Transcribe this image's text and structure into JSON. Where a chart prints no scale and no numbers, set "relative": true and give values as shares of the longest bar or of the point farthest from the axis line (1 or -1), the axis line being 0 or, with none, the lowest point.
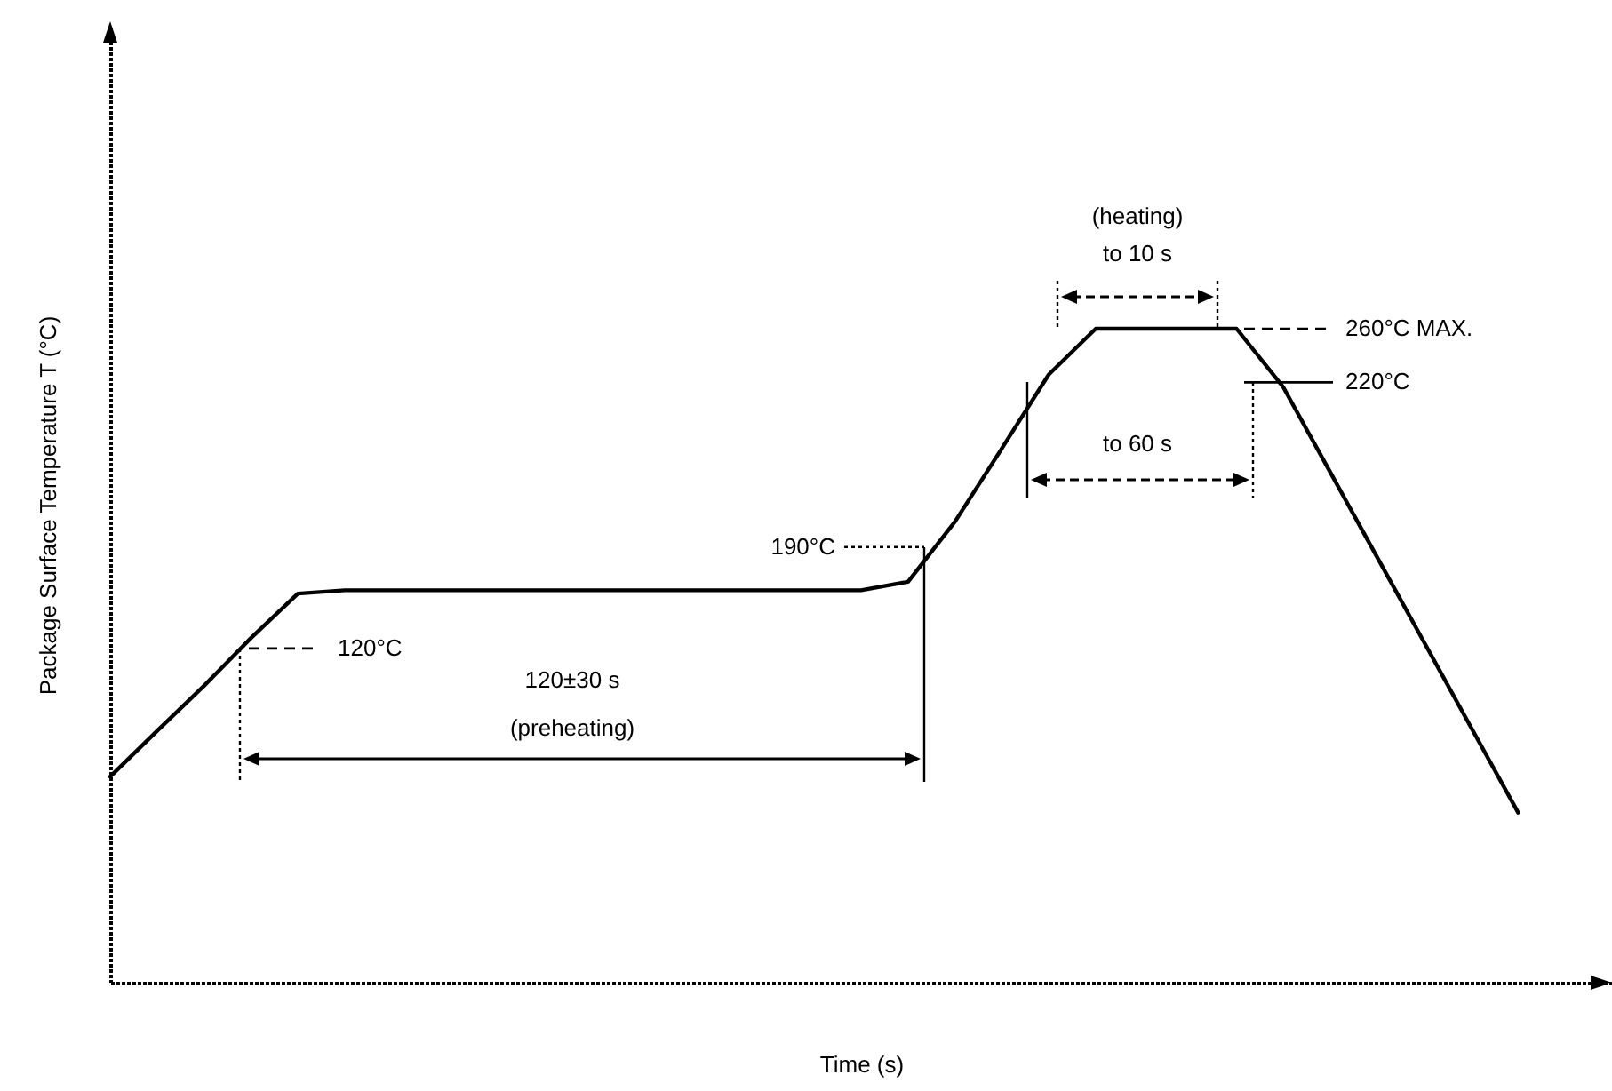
{
  "chart_data": {
    "type": "line",
    "relative": true,
    "xlabel": "Time (s)",
    "ylabel": "Package Surface Temperature  T (°C)",
    "tick_labels": false,
    "grid": false,
    "marker": "none",
    "line_style": "solid",
    "categories": [
      null,
      null,
      null,
      null,
      null,
      null,
      null,
      null,
      null,
      null,
      null,
      null,
      null,
      null,
      null,
      null,
      null,
      null,
      null,
      null,
      null,
      null,
      null,
      null,
      null,
      null,
      null,
      null,
      null,
      null,
      null
    ],
    "series": [
      {
        "color": "#000000",
        "values": [
          0.315,
          0.385,
          0.454,
          0.527,
          0.595,
          0.6,
          0.6,
          0.6,
          0.6,
          0.6,
          0.6,
          0.6,
          0.6,
          0.6,
          0.6,
          0.6,
          0.6,
          0.613,
          0.705,
          0.817,
          0.93,
          1,
          1,
          1,
          1,
          0.91,
          0.78,
          0.65,
          0.52,
          0.39,
          0.26
        ]
      }
    ],
    "ref_lines": [
      {
        "axis": "y",
        "value": 0.511,
        "label": "120°C",
        "line_style": "dashed"
      },
      {
        "axis": "y",
        "value": 0.666,
        "label": "190°C",
        "line_style": "dotted"
      },
      {
        "axis": "y",
        "value": 0.918,
        "label": "220°C",
        "line_style": "solid"
      },
      {
        "axis": "y",
        "value": 1,
        "label": "260°C MAX.",
        "line_style": "dashed"
      }
    ],
    "annotations": [
      "120±30 s",
      "(preheating)",
      "(heating)",
      "to 10 s",
      "to 60 s"
    ]
  }
}
